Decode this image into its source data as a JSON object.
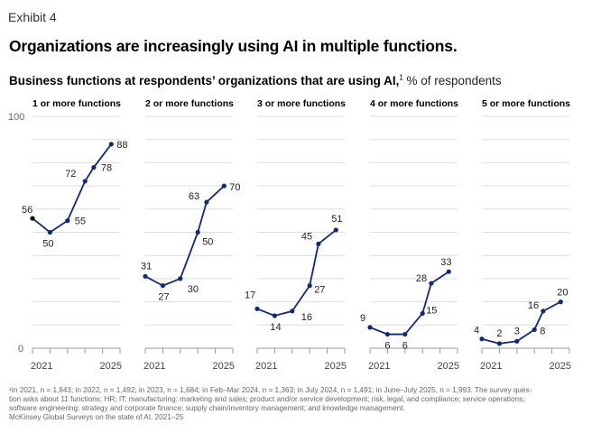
{
  "header": {
    "exhibit": "Exhibit 4",
    "title": "Organizations are increasingly using AI in multiple functions.",
    "subtitle_bold": "Business functions at respondents’ organizations that are using AI,",
    "subtitle_sup": "1",
    "subtitle_unit": " % of respondents"
  },
  "colors": {
    "line": "#0f2a78",
    "first_point_panel1": "#000000",
    "grid": "#dddddd",
    "axis": "#999999"
  },
  "chart_data": {
    "type": "line",
    "title": "Organizations are increasingly using AI in multiple functions.",
    "ylabel": "% of respondents",
    "ylim": [
      0,
      100
    ],
    "yticks_labeled": [
      "0",
      "100"
    ],
    "grid": true,
    "grid_step": 10,
    "x": [
      "2021",
      "2022",
      "2023",
      "Feb–Mar 2024",
      "Jul 2024",
      "Jun–Jul 2025"
    ],
    "x_pos": [
      0,
      1,
      2,
      3,
      3.5,
      4.5
    ],
    "x_axis_ticks": [
      0,
      1,
      2,
      3,
      4,
      5
    ],
    "xtick_labels": [
      {
        "pos": 0,
        "label": "2021"
      },
      {
        "pos": 5,
        "label": "2025"
      }
    ],
    "series": [
      {
        "name": "1 or more functions",
        "values": [
          56,
          50,
          55,
          72,
          78,
          88
        ]
      },
      {
        "name": "2 or more functions",
        "values": [
          31,
          27,
          30,
          50,
          63,
          70
        ]
      },
      {
        "name": "3 or more functions",
        "values": [
          17,
          14,
          16,
          27,
          45,
          51
        ]
      },
      {
        "name": "4 or more functions",
        "values": [
          9,
          6,
          6,
          15,
          28,
          33
        ]
      },
      {
        "name": "5 or more functions",
        "values": [
          4,
          2,
          3,
          8,
          16,
          20
        ]
      }
    ]
  },
  "footnote": {
    "lines": [
      "¹In 2021, n = 1,843; in 2022, n = 1,492; in 2023, n = 1,684; in Feb–Mar 2024, n = 1,363; in July 2024, n = 1,491; in June–July 2025, n = 1,993. The survey ques-",
      "tion asks about 11 functions: HR; IT; manufacturing: marketing and sales; product and/or service development; risk, legal, and compliance; service operations;",
      "software engineering; strategy and corporate finance; supply chain/inventory management; and knowledge management."
    ],
    "source": "McKinsey Global Surveys on the state of AI, 2021–25"
  }
}
